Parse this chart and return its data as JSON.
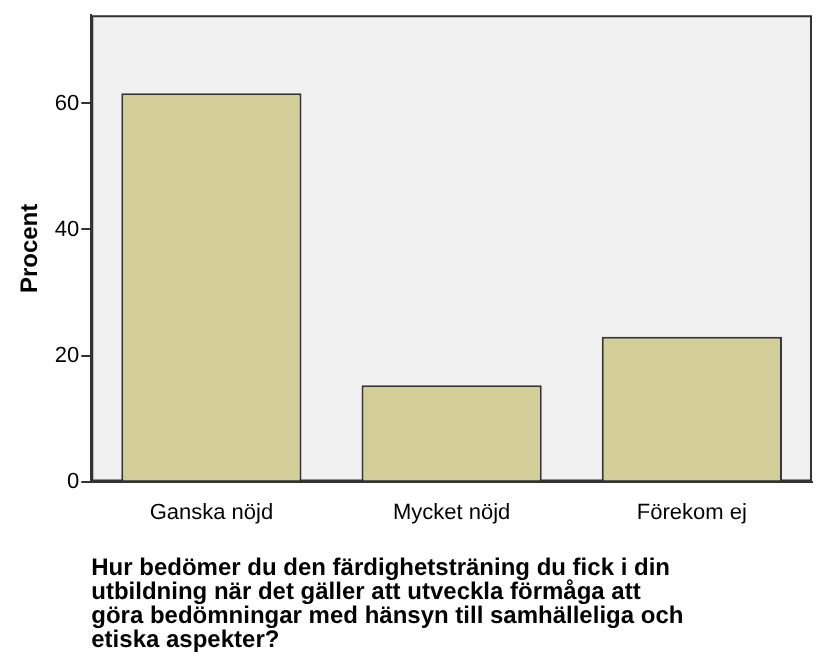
{
  "chart_data": {
    "type": "bar",
    "ylabel": "Procent",
    "xlabel": "Hur bedömer du den färdighetsträning du fick i din utbildning när det gäller att utveckla förmåga att göra bedömningar med hänsyn till samhälleliga och etiska aspekter?",
    "categories": [
      "Ganska nöjd",
      "Mycket nöjd",
      "Förekom ej"
    ],
    "values": [
      61.6,
      15.3,
      23.0
    ],
    "color": "#d3ce97",
    "ylim": [
      0,
      74
    ],
    "yticks": [
      0,
      20,
      40,
      60
    ],
    "grid": false,
    "legend": false
  }
}
